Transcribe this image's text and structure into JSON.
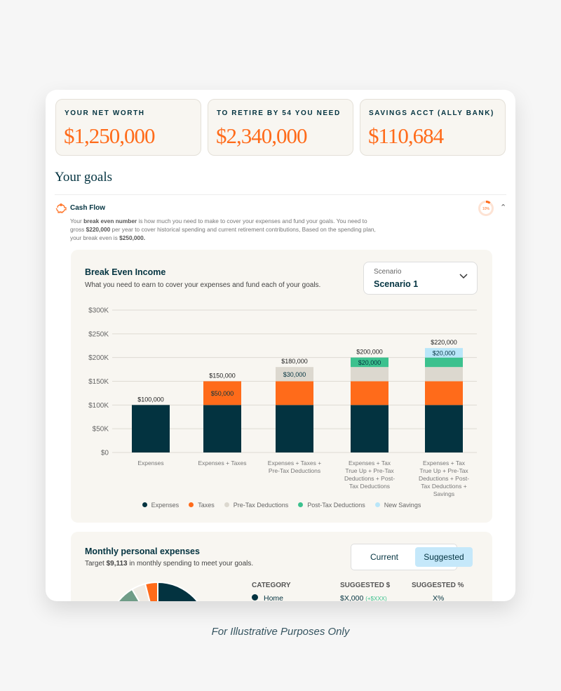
{
  "stats": [
    {
      "label": "YOUR NET WORTH",
      "value": "$1,250,000"
    },
    {
      "label": "TO RETIRE BY 54 YOU NEED",
      "value": "$2,340,000"
    },
    {
      "label": "SAVINGS ACCT (ALLY BANK)",
      "value": "$110,684"
    }
  ],
  "goals_title": "Your goals",
  "cash_flow": {
    "title": "Cash Flow",
    "progress_label": "10%",
    "progress": 0.1,
    "desc": {
      "p1": "Your ",
      "b1": "break even number",
      "p2": " is how much you need to make to cover your expenses and fund your goals.  You need to gross ",
      "b2": "$220,000",
      "p3": " per year to cover historical spending and current retirement contributions,  Based on the spending plan, your break even is ",
      "b3": "$250,000."
    }
  },
  "break_even": {
    "title": "Break Even Income",
    "subtitle": "What you need to earn to cover your expenses and fund each of your goals.",
    "scenario_label": "Scenario",
    "scenario_value": "Scenario 1"
  },
  "chart_data": {
    "type": "bar",
    "stacked": true,
    "categories": [
      [
        "Expenses"
      ],
      [
        "Expenses + Taxes"
      ],
      [
        "Expenses + Taxes +",
        "Pre-Tax Deductions"
      ],
      [
        "Expenses + Tax",
        "True Up + Pre-Tax",
        "Deductions + Post-",
        "Tax Deductions"
      ],
      [
        "Expenses + Tax",
        "True Up + Pre-Tax",
        "Deductions + Post-",
        "Tax Deductions +",
        "Savings"
      ]
    ],
    "series": [
      {
        "name": "Expenses",
        "color": "#033340",
        "values": [
          100000,
          100000,
          100000,
          100000,
          100000
        ]
      },
      {
        "name": "Taxes",
        "color": "#ff6b1a",
        "values": [
          0,
          50000,
          50000,
          50000,
          50000
        ]
      },
      {
        "name": "Pre-Tax Deductions",
        "color": "#dcd8cf",
        "values": [
          0,
          0,
          30000,
          30000,
          30000
        ]
      },
      {
        "name": "Post-Tax Deductions",
        "color": "#3cc18e",
        "values": [
          0,
          0,
          0,
          20000,
          20000
        ]
      },
      {
        "name": "New Savings",
        "color": "#b9e6f9",
        "values": [
          0,
          0,
          0,
          0,
          20000
        ]
      }
    ],
    "totals": [
      "$100,000",
      "$150,000",
      "$180,000",
      "$200,000",
      "$220,000"
    ],
    "segment_labels": [
      {
        "bar": 1,
        "series": 1,
        "text": "$50,000"
      },
      {
        "bar": 2,
        "series": 2,
        "text": "$30,000"
      },
      {
        "bar": 3,
        "series": 3,
        "text": "$20,000"
      },
      {
        "bar": 4,
        "series": 4,
        "text": "$20,000"
      }
    ],
    "yticks": [
      "$0",
      "$50K",
      "$100K",
      "$150K",
      "$200K",
      "$250K",
      "$300K"
    ],
    "ylim": [
      0,
      300000
    ],
    "grid": true,
    "legend": "bottom"
  },
  "monthly": {
    "title": "Monthly personal expenses",
    "sub_pre": "Target ",
    "sub_amount": "$9,113",
    "sub_post": " in monthly spending to meet your goals.",
    "toggle": [
      "Current",
      "Suggested"
    ],
    "active": "Suggested",
    "headers": [
      "CATEGORY",
      "SUGGESTED $",
      "SUGGESTED %"
    ],
    "rows": [
      {
        "category": "Home",
        "color": "#033340",
        "amount": "$X,000",
        "delta": "(+$XXX)",
        "pct": "X%"
      }
    ],
    "pie": [
      {
        "color": "#033340",
        "share": 0.5
      },
      {
        "color": "#6f9c87",
        "share": 0.07
      },
      {
        "color": "#efebe4",
        "share": 0.045
      },
      {
        "color": "#ff6b1a",
        "share": 0.04
      },
      {
        "color": "#033340",
        "share": 0.345
      }
    ]
  },
  "caption": "For Illustrative Purposes Only",
  "colors": {
    "accent": "#ff6b1a",
    "primary": "#033340",
    "delta": "#3cc18e"
  }
}
